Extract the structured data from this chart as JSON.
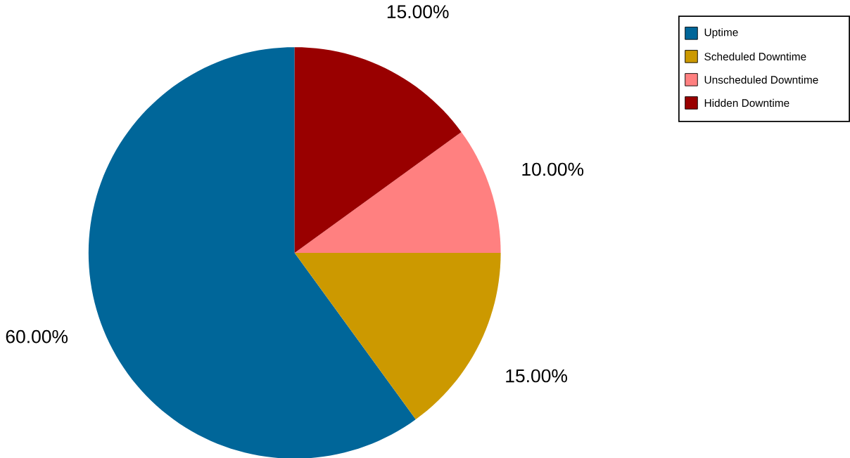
{
  "chart_data": {
    "type": "pie",
    "categories": [
      "Uptime",
      "Scheduled Downtime",
      "Unscheduled Downtime",
      "Hidden Downtime"
    ],
    "values": [
      60,
      15,
      10,
      15
    ],
    "colors": [
      "#006699",
      "#cc9900",
      "#ff8080",
      "#990000"
    ],
    "value_labels": [
      "60.00%",
      "15.00%",
      "10.00%",
      "15.00%"
    ],
    "legend": "top right"
  }
}
